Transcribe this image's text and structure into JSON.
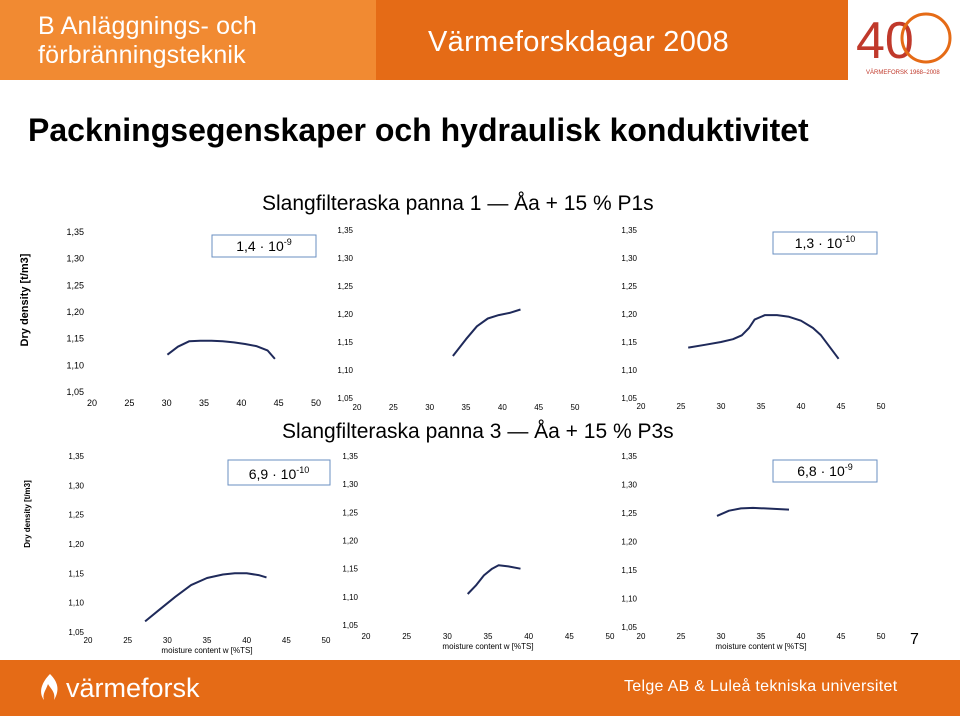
{
  "header": {
    "left_line1": "B Anläggnings- och",
    "left_line2": "förbränningsteknik",
    "center": "Värmeforskdagar 2008",
    "logo_number": "40",
    "logo_caption": "VÄRMEFORSK 1968–2008"
  },
  "title": "Packningsegenskaper och hydraulisk konduktivitet",
  "group_titles": {
    "panna1": "Slangfilteraska panna 1 — Åa + 15 % P1s",
    "panna3": "Slangfilteraska panna 3 — Åa + 15 % P3s"
  },
  "footer": {
    "brand": "värmeforsk",
    "credit": "Telge AB & Luleå tekniska universitet"
  },
  "page_number": "7",
  "colors": {
    "header_light": "#f18a32",
    "header_dark": "#e56b16",
    "line": "#1f2a5a",
    "annotation_border": "#6a8fc2"
  },
  "chart_data": [
    {
      "type": "line",
      "ylabel": "Dry density [t/m3]",
      "xlabel": "",
      "x_ticks": [
        "20",
        "25",
        "30",
        "35",
        "40",
        "45",
        "50"
      ],
      "y_ticks": [
        "1,05",
        "1,10",
        "1,15",
        "1,20",
        "1,25",
        "1,30",
        "1,35"
      ],
      "xlim": [
        20,
        50
      ],
      "ylim": [
        1.05,
        1.35
      ],
      "annotation": {
        "base": "1,4 · 10",
        "exp": "-9"
      },
      "series": [
        {
          "x": [
            30.1,
            31.5,
            33,
            34.5,
            36,
            37.5,
            39,
            40.5,
            42,
            43.5,
            44.5
          ],
          "y": [
            1.12,
            1.135,
            1.145,
            1.146,
            1.146,
            1.145,
            1.143,
            1.14,
            1.136,
            1.128,
            1.112
          ]
        }
      ]
    },
    {
      "type": "line",
      "xlabel": "",
      "x_ticks": [
        "20",
        "25",
        "30",
        "35",
        "40",
        "45",
        "50"
      ],
      "y_ticks": [
        "1,05",
        "1,10",
        "1,15",
        "1,20",
        "1,25",
        "1,30",
        "1,35"
      ],
      "xlim": [
        20,
        50
      ],
      "ylim": [
        1.05,
        1.35
      ],
      "series": [
        {
          "x": [
            33.2,
            35,
            36.5,
            38,
            39.5,
            41,
            42.5
          ],
          "y": [
            1.125,
            1.155,
            1.178,
            1.192,
            1.198,
            1.202,
            1.208
          ]
        }
      ]
    },
    {
      "type": "line",
      "xlabel": "",
      "x_ticks": [
        "20",
        "25",
        "30",
        "35",
        "40",
        "45",
        "50"
      ],
      "y_ticks": [
        "1,05",
        "1,10",
        "1,15",
        "1,20",
        "1,25",
        "1,30",
        "1,35"
      ],
      "xlim": [
        20,
        50
      ],
      "ylim": [
        1.05,
        1.35
      ],
      "annotation": {
        "base": "1,3 · 10",
        "exp": "-10"
      },
      "series": [
        {
          "x": [
            25.9,
            28,
            30,
            31.5,
            32.6,
            33.5,
            34.2,
            35.5,
            37,
            38.5,
            40,
            41.5,
            42.5,
            44.7
          ],
          "y": [
            1.14,
            1.145,
            1.15,
            1.155,
            1.162,
            1.175,
            1.19,
            1.198,
            1.198,
            1.195,
            1.188,
            1.175,
            1.162,
            1.12
          ]
        }
      ]
    },
    {
      "type": "line",
      "ylabel": "Dry density [t/m3]",
      "xlabel": "moisture content w [%TS]",
      "x_ticks": [
        "20",
        "25",
        "30",
        "35",
        "40",
        "45",
        "50"
      ],
      "y_ticks": [
        "1,05",
        "1,10",
        "1,15",
        "1,20",
        "1,25",
        "1,30",
        "1,35"
      ],
      "xlim": [
        20,
        50
      ],
      "ylim": [
        1.05,
        1.35
      ],
      "annotation": {
        "base": "6,9 · 10",
        "exp": "-10"
      },
      "series": [
        {
          "x": [
            27.2,
            29,
            31,
            33,
            35,
            37,
            38.5,
            40,
            41.5,
            42.5
          ],
          "y": [
            1.068,
            1.088,
            1.11,
            1.13,
            1.142,
            1.148,
            1.15,
            1.15,
            1.147,
            1.143
          ]
        }
      ]
    },
    {
      "type": "line",
      "xlabel": "moisture content w [%TS]",
      "x_ticks": [
        "20",
        "25",
        "30",
        "35",
        "40",
        "45",
        "50"
      ],
      "y_ticks": [
        "1,05",
        "1,10",
        "1,15",
        "1,20",
        "1,25",
        "1,30",
        "1,35"
      ],
      "xlim": [
        20,
        50
      ],
      "ylim": [
        1.05,
        1.35
      ],
      "series": [
        {
          "x": [
            32.5,
            33.5,
            34.5,
            35.5,
            36.3,
            37.5,
            39
          ],
          "y": [
            1.105,
            1.12,
            1.138,
            1.15,
            1.156,
            1.154,
            1.15
          ]
        }
      ]
    },
    {
      "type": "line",
      "xlabel": "moisture content w [%TS]",
      "x_ticks": [
        "20",
        "25",
        "30",
        "35",
        "40",
        "45",
        "50"
      ],
      "y_ticks": [
        "1,05",
        "1,10",
        "1,15",
        "1,20",
        "1,25",
        "1,30",
        "1,35"
      ],
      "xlim": [
        20,
        50
      ],
      "ylim": [
        1.05,
        1.35
      ],
      "annotation": {
        "base": "6,8 · 10",
        "exp": "-9"
      },
      "series": [
        {
          "x": [
            29.5,
            31,
            32.5,
            34,
            35.5,
            37,
            38.5
          ],
          "y": [
            1.245,
            1.254,
            1.258,
            1.259,
            1.258,
            1.257,
            1.256
          ]
        }
      ]
    }
  ]
}
